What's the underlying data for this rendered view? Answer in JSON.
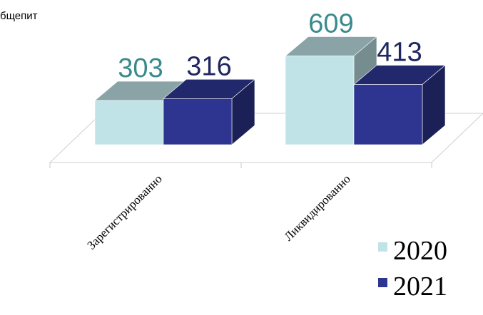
{
  "chart_data": {
    "type": "bar",
    "title": "бщепит",
    "categories": [
      "Зарегистрированно",
      "Ликвидированно"
    ],
    "series": [
      {
        "name": "2020",
        "values": [
          303,
          609
        ],
        "color": "#bfe3e6",
        "label_color": "#3a8a8c"
      },
      {
        "name": "2021",
        "values": [
          316,
          413
        ],
        "color": "#2d3590",
        "label_color": "#1f2660"
      }
    ],
    "xlabel": "",
    "ylabel": "",
    "grid": false,
    "legend": "bottom-right",
    "style": "3d-column"
  }
}
